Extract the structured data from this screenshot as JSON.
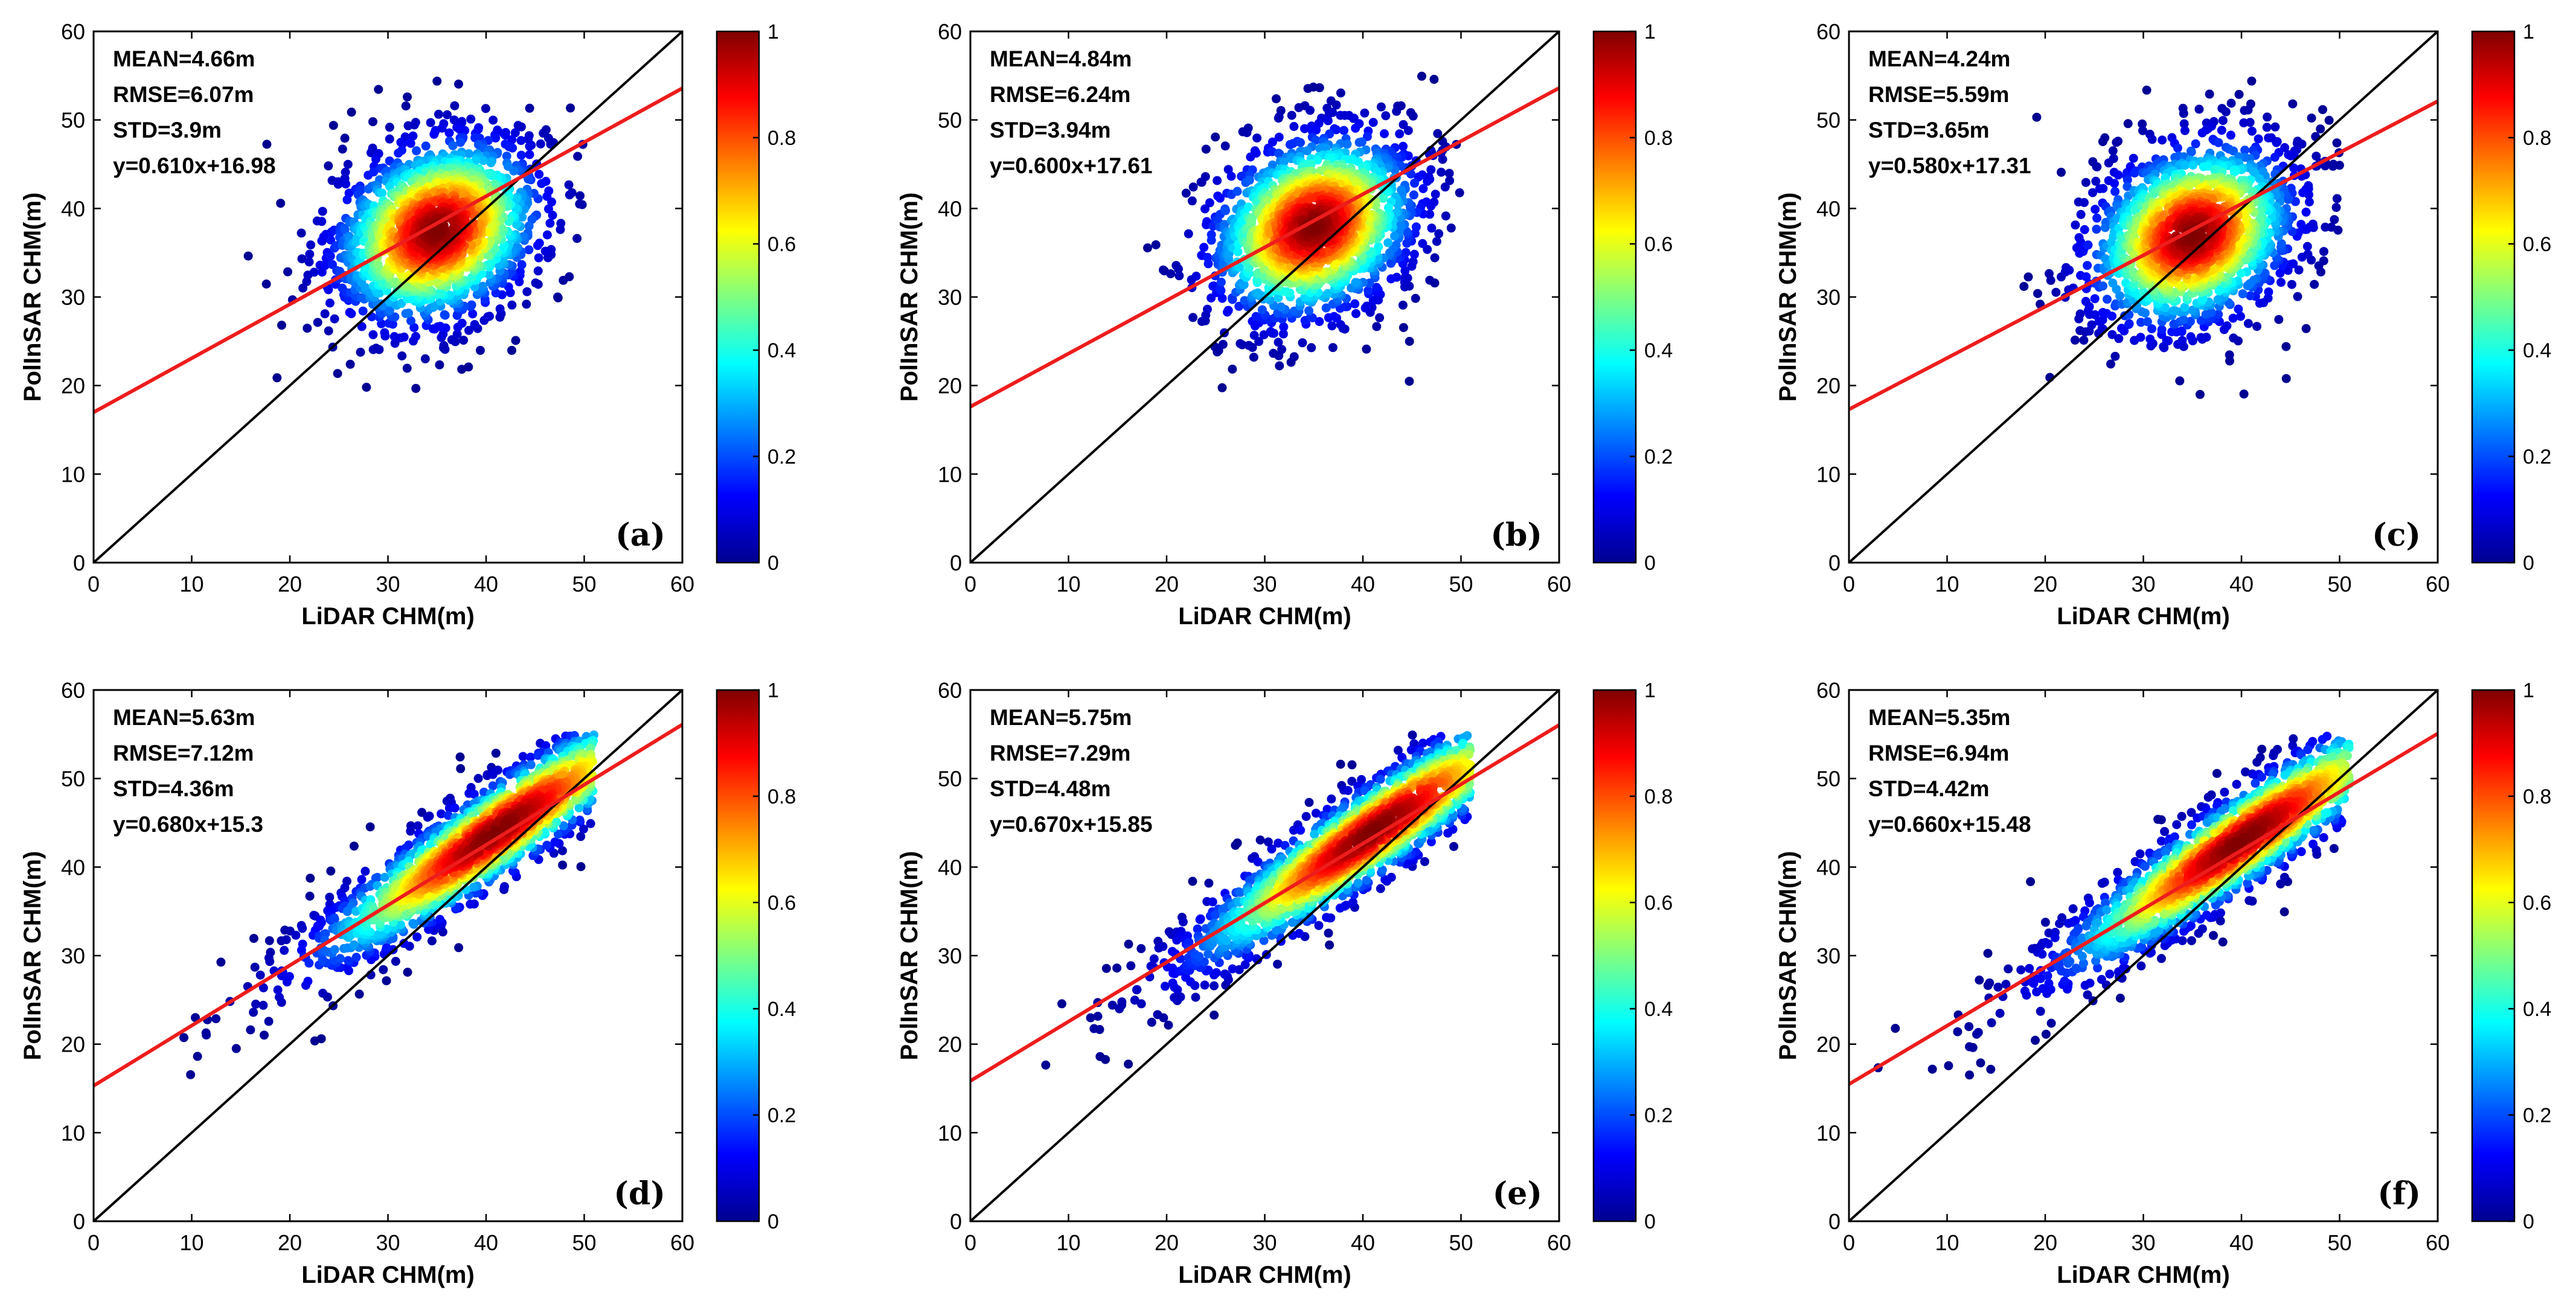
{
  "colormap": [
    "#00008f",
    "#0000ff",
    "#0080ff",
    "#00ffff",
    "#80ff80",
    "#ffff00",
    "#ff8000",
    "#ff0000",
    "#800000"
  ],
  "colors": {
    "fit_line": "#ee1c1c",
    "identity_line": "#000000"
  },
  "chart_data": [
    {
      "type": "scatter",
      "panel": "(a)",
      "xlabel": "LiDAR CHM(m)",
      "ylabel": "PolInSAR CHM(m)",
      "xlim": [
        0,
        60
      ],
      "ylim": [
        0,
        60
      ],
      "xticks": [
        "0",
        "10",
        "20",
        "30",
        "40",
        "50",
        "60"
      ],
      "yticks": [
        "0",
        "10",
        "20",
        "30",
        "40",
        "50",
        "60"
      ],
      "stats": [
        "MEAN=4.66m",
        "RMSE=6.07m",
        "STD=3.9m",
        "y=0.610x+16.98"
      ],
      "fit": {
        "slope": 0.61,
        "intercept": 16.98
      },
      "identity_line": true,
      "density_center": [
        35,
        37.5
      ],
      "spread": [
        5.5,
        5.5
      ],
      "corr": 0.25,
      "x_range": [
        10,
        50
      ],
      "y_range": [
        17,
        55
      ],
      "colorbar": {
        "min": 0,
        "max": 1,
        "ticks": [
          "0",
          "0.2",
          "0.4",
          "0.6",
          "0.8",
          "1"
        ]
      }
    },
    {
      "type": "scatter",
      "panel": "(b)",
      "xlabel": "LiDAR CHM(m)",
      "ylabel": "PolInSAR CHM(m)",
      "xlim": [
        0,
        60
      ],
      "ylim": [
        0,
        60
      ],
      "xticks": [
        "0",
        "10",
        "20",
        "30",
        "40",
        "50",
        "60"
      ],
      "yticks": [
        "0",
        "10",
        "20",
        "30",
        "40",
        "50",
        "60"
      ],
      "stats": [
        "MEAN=4.84m",
        "RMSE=6.24m",
        "STD=3.94m",
        "y=0.600x+17.61"
      ],
      "fit": {
        "slope": 0.6,
        "intercept": 17.61
      },
      "identity_line": true,
      "density_center": [
        35,
        38
      ],
      "spread": [
        5.5,
        5.5
      ],
      "corr": 0.25,
      "x_range": [
        10,
        50
      ],
      "y_range": [
        17,
        55
      ],
      "colorbar": {
        "min": 0,
        "max": 1,
        "ticks": [
          "0",
          "0.2",
          "0.4",
          "0.6",
          "0.8",
          "1"
        ]
      }
    },
    {
      "type": "scatter",
      "panel": "(c)",
      "xlabel": "LiDAR CHM(m)",
      "ylabel": "PolInSAR CHM(m)",
      "xlim": [
        0,
        60
      ],
      "ylim": [
        0,
        60
      ],
      "xticks": [
        "0",
        "10",
        "20",
        "30",
        "40",
        "50",
        "60"
      ],
      "yticks": [
        "0",
        "10",
        "20",
        "30",
        "40",
        "50",
        "60"
      ],
      "stats": [
        "MEAN=4.24m",
        "RMSE=5.59m",
        "STD=3.65m",
        "y=0.580x+17.31"
      ],
      "fit": {
        "slope": 0.58,
        "intercept": 17.31
      },
      "identity_line": true,
      "density_center": [
        35,
        37
      ],
      "spread": [
        5.5,
        5.5
      ],
      "corr": 0.25,
      "x_range": [
        10,
        50
      ],
      "y_range": [
        17,
        55
      ],
      "colorbar": {
        "min": 0,
        "max": 1,
        "ticks": [
          "0",
          "0.2",
          "0.4",
          "0.6",
          "0.8",
          "1"
        ]
      }
    },
    {
      "type": "scatter",
      "panel": "(d)",
      "xlabel": "LiDAR CHM(m)",
      "ylabel": "PolInSAR CHM(m)",
      "xlim": [
        0,
        60
      ],
      "ylim": [
        0,
        60
      ],
      "xticks": [
        "0",
        "10",
        "20",
        "30",
        "40",
        "50",
        "60"
      ],
      "yticks": [
        "0",
        "10",
        "20",
        "30",
        "40",
        "50",
        "60"
      ],
      "stats": [
        "MEAN=5.63m",
        "RMSE=7.12m",
        "STD=4.36m",
        "y=0.680x+15.3"
      ],
      "fit": {
        "slope": 0.68,
        "intercept": 15.3
      },
      "identity_line": true,
      "density_center": [
        41,
        44
      ],
      "spread": [
        10,
        8
      ],
      "corr": 0.93,
      "x_range": [
        2,
        51
      ],
      "y_range": [
        14,
        55
      ],
      "colorbar": {
        "min": 0,
        "max": 1,
        "ticks": [
          "0",
          "0.2",
          "0.4",
          "0.6",
          "0.8",
          "1"
        ]
      }
    },
    {
      "type": "scatter",
      "panel": "(e)",
      "xlabel": "LiDAR CHM(m)",
      "ylabel": "PolInSAR CHM(m)",
      "xlim": [
        0,
        60
      ],
      "ylim": [
        0,
        60
      ],
      "xticks": [
        "0",
        "10",
        "20",
        "30",
        "40",
        "50",
        "60"
      ],
      "yticks": [
        "0",
        "10",
        "20",
        "30",
        "40",
        "50",
        "60"
      ],
      "stats": [
        "MEAN=5.75m",
        "RMSE=7.29m",
        "STD=4.48m",
        "y=0.670x+15.85"
      ],
      "fit": {
        "slope": 0.67,
        "intercept": 15.85
      },
      "identity_line": true,
      "density_center": [
        41,
        44
      ],
      "spread": [
        10,
        8
      ],
      "corr": 0.93,
      "x_range": [
        2,
        51
      ],
      "y_range": [
        14,
        55
      ],
      "colorbar": {
        "min": 0,
        "max": 1,
        "ticks": [
          "0",
          "0.2",
          "0.4",
          "0.6",
          "0.8",
          "1"
        ]
      }
    },
    {
      "type": "scatter",
      "panel": "(f)",
      "xlabel": "LiDAR CHM(m)",
      "ylabel": "PolInSAR CHM(m)",
      "xlim": [
        0,
        60
      ],
      "ylim": [
        0,
        60
      ],
      "xticks": [
        "0",
        "10",
        "20",
        "30",
        "40",
        "50",
        "60"
      ],
      "yticks": [
        "0",
        "10",
        "20",
        "30",
        "40",
        "50",
        "60"
      ],
      "stats": [
        "MEAN=5.35m",
        "RMSE=6.94m",
        "STD=4.42m",
        "y=0.660x+15.48"
      ],
      "fit": {
        "slope": 0.66,
        "intercept": 15.48
      },
      "identity_line": true,
      "density_center": [
        40,
        43
      ],
      "spread": [
        10,
        8
      ],
      "corr": 0.93,
      "x_range": [
        2,
        51
      ],
      "y_range": [
        14,
        55
      ],
      "colorbar": {
        "min": 0,
        "max": 1,
        "ticks": [
          "0",
          "0.2",
          "0.4",
          "0.6",
          "0.8",
          "1"
        ]
      }
    }
  ]
}
